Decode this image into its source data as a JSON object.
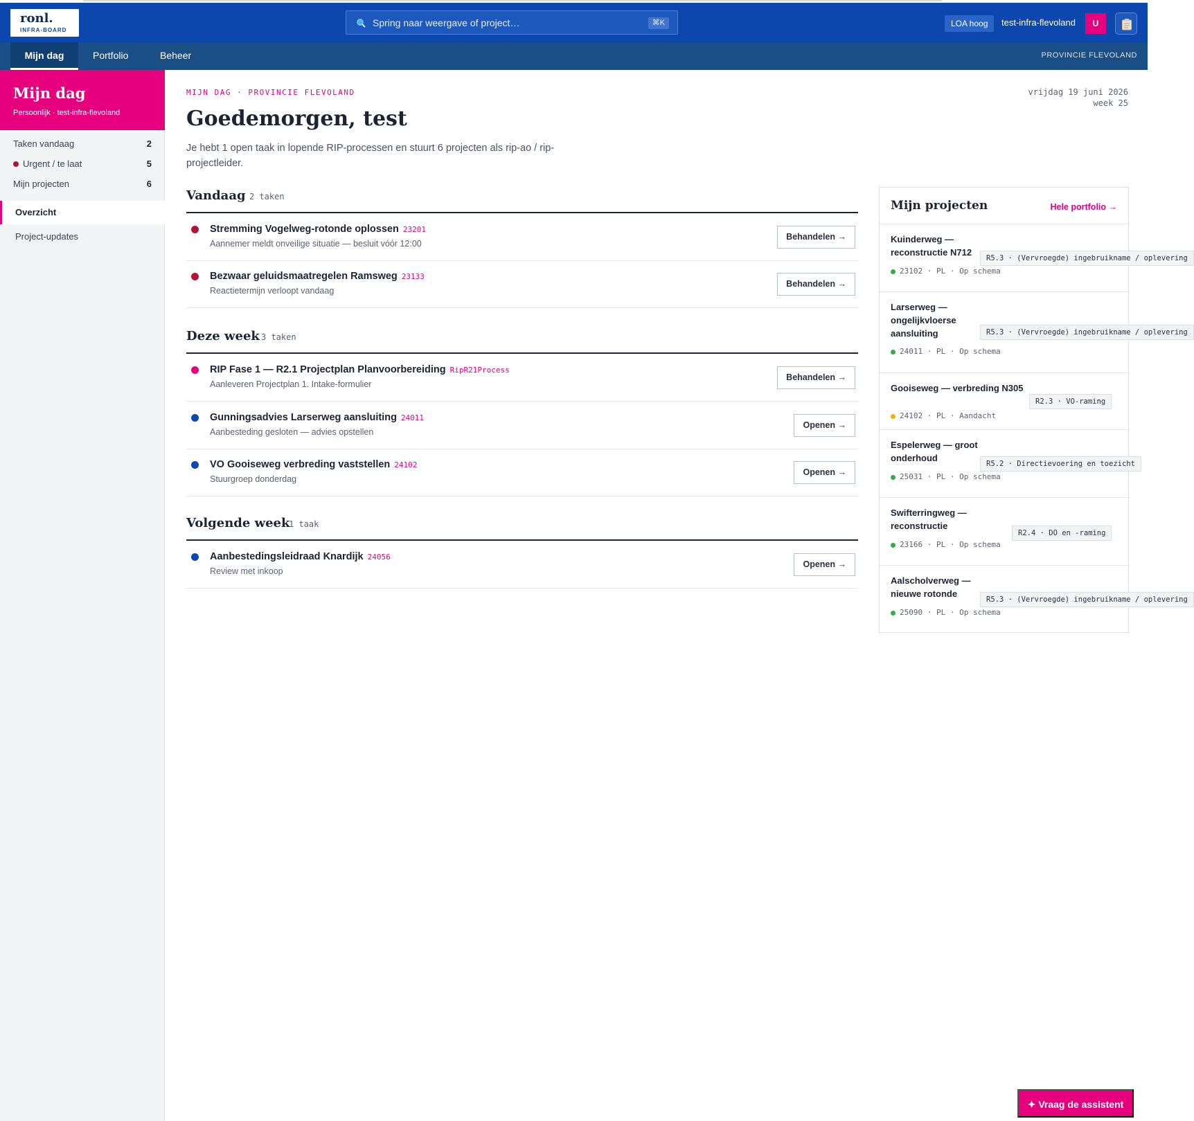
{
  "brand": {
    "name": "ronl.",
    "sub": "INFRA-BOARD"
  },
  "search": {
    "placeholder": "Spring naar weergave of project…",
    "shortcut": "⌘K"
  },
  "header": {
    "loa": "LOA hoog",
    "tenant": "test-infra-flevoland",
    "avatar": "U"
  },
  "nav": {
    "tabs": [
      "Mijn dag",
      "Portfolio",
      "Beheer"
    ],
    "org": "PROVINCIE FLEVOLAND"
  },
  "sidebar": {
    "title": "Mijn dag",
    "subtitle": "Persoonlijk · test-infra-flevoland",
    "stats": [
      {
        "label": "Taken vandaag",
        "value": "2"
      },
      {
        "label": "Urgent / te laat",
        "value": "5"
      },
      {
        "label": "Mijn projecten",
        "value": "6"
      }
    ],
    "items": [
      "Overzicht",
      "Project-updates"
    ]
  },
  "main": {
    "crumb": "MIJN DAG · PROVINCIE FLEVOLAND",
    "date": "vrijdag 19 juni 2026",
    "week": "week 25",
    "greeting": "Goedemorgen, test",
    "intro": "Je hebt 1 open taak in lopende RIP-processen en stuurt 6 projecten als rip-ao / rip-projectleider.",
    "sections": [
      {
        "title": "Vandaag",
        "count": "2 taken",
        "tasks": [
          {
            "title": "Stremming Vogelweg-rotonde oplossen",
            "code": "23201",
            "sub": "Aannemer meldt onveilige situatie — besluit vóór 12:00",
            "action": "Behandelen →",
            "color": "#b0163c"
          },
          {
            "title": "Bezwaar geluidsmaatregelen Ramsweg",
            "code": "23133",
            "sub": "Reactietermijn verloopt vandaag",
            "action": "Behandelen →",
            "color": "#b0163c"
          }
        ]
      },
      {
        "title": "Deze week",
        "count": "3 taken",
        "tasks": [
          {
            "title": "RIP Fase 1 — R2.1 Projectplan Planvoorbereiding",
            "code": "RipR21Process",
            "sub": "Aanleveren Projectplan 1. Intake-formulier",
            "action": "Behandelen →",
            "color": "#e6007e"
          },
          {
            "title": "Gunningsadvies Larserweg aansluiting",
            "code": "24011",
            "sub": "Aanbesteding gesloten — advies opstellen",
            "action": "Openen →",
            "color": "#0b47ad"
          },
          {
            "title": "VO Gooiseweg verbreding vaststellen",
            "code": "24102",
            "sub": "Stuurgroep donderdag",
            "action": "Openen →",
            "color": "#0b47ad"
          }
        ]
      },
      {
        "title": "Volgende week",
        "count": "1 taak",
        "tasks": [
          {
            "title": "Aanbestedingsleidraad Knardijk",
            "code": "24056",
            "sub": "Review met inkoop",
            "action": "Openen →",
            "color": "#0b47ad"
          }
        ]
      }
    ]
  },
  "projects": {
    "title": "Mijn projecten",
    "link": "Hele portfolio →",
    "items": [
      {
        "name": "Kuinderweg — reconstructie N712",
        "code": "23102",
        "role": "PL",
        "status": "Op schema",
        "phase": "R5.3 · (Vervroegde) ingebruikname / oplevering",
        "color": "#3aa845"
      },
      {
        "name": "Larserweg — ongelijkvloerse aansluiting",
        "code": "24011",
        "role": "PL",
        "status": "Op schema",
        "phase": "R5.3 · (Vervroegde) ingebruikname / oplevering",
        "color": "#3aa845"
      },
      {
        "name": "Gooiseweg — verbreding N305",
        "code": "24102",
        "role": "PL",
        "status": "Aandacht",
        "phase": "R2.3 · VO-raming",
        "color": "#e7b416"
      },
      {
        "name": "Espelerweg — groot onderhoud",
        "code": "25031",
        "role": "PL",
        "status": "Op schema",
        "phase": "R5.2 · Directievoering en toezicht",
        "color": "#3aa845"
      },
      {
        "name": "Swifterringweg — reconstructie",
        "code": "23166",
        "role": "PL",
        "status": "Op schema",
        "phase": "R2.4 · DO en -raming",
        "color": "#3aa845"
      },
      {
        "name": "Aalscholverweg — nieuwe rotonde",
        "code": "25090",
        "role": "PL",
        "status": "Op schema",
        "phase": "R5.3 · (Vervroegde) ingebruikname / oplevering",
        "color": "#3aa845"
      }
    ]
  },
  "assistant": {
    "label": "Vraag de assistent"
  }
}
